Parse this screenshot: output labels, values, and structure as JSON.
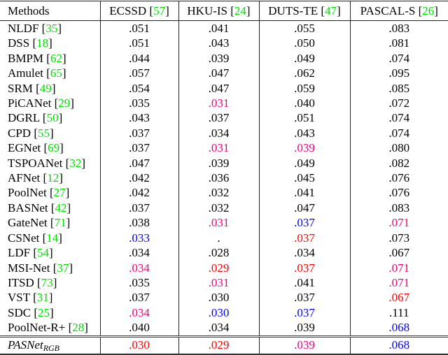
{
  "colors": {
    "red": "#ff0000",
    "pink": "#ee0080",
    "blue": "#0000ff",
    "citation": "#00e000"
  },
  "header": {
    "methods": "Methods",
    "datasets": [
      {
        "name": "ECSSD",
        "ref": "57"
      },
      {
        "name": "HKU-IS",
        "ref": "24"
      },
      {
        "name": "DUTS-TE",
        "ref": "47"
      },
      {
        "name": "PASCAL-S",
        "ref": "26"
      }
    ]
  },
  "rows": [
    {
      "method": "NLDF",
      "ref": "35",
      "values": [
        {
          "v": ".051"
        },
        {
          "v": ".041"
        },
        {
          "v": ".055"
        },
        {
          "v": ".083"
        }
      ]
    },
    {
      "method": "DSS",
      "ref": "18",
      "values": [
        {
          "v": ".051"
        },
        {
          "v": ".043"
        },
        {
          "v": ".050"
        },
        {
          "v": ".081"
        }
      ]
    },
    {
      "method": "BMPM",
      "ref": "62",
      "values": [
        {
          "v": ".044"
        },
        {
          "v": ".039"
        },
        {
          "v": ".049"
        },
        {
          "v": ".074"
        }
      ]
    },
    {
      "method": "Amulet",
      "ref": "65",
      "values": [
        {
          "v": ".057"
        },
        {
          "v": ".047"
        },
        {
          "v": ".062"
        },
        {
          "v": ".095"
        }
      ]
    },
    {
      "method": "SRM",
      "ref": "49",
      "values": [
        {
          "v": ".054"
        },
        {
          "v": ".047"
        },
        {
          "v": ".059"
        },
        {
          "v": ".085"
        }
      ]
    },
    {
      "method": "PiCANet",
      "ref": "29",
      "values": [
        {
          "v": ".035"
        },
        {
          "v": ".031",
          "c": "pink"
        },
        {
          "v": ".040"
        },
        {
          "v": ".072"
        }
      ]
    },
    {
      "method": "DGRL",
      "ref": "50",
      "values": [
        {
          "v": ".043"
        },
        {
          "v": ".037"
        },
        {
          "v": ".051"
        },
        {
          "v": ".074"
        }
      ]
    },
    {
      "method": "CPD",
      "ref": "55",
      "values": [
        {
          "v": ".037"
        },
        {
          "v": ".034"
        },
        {
          "v": ".043"
        },
        {
          "v": ".074"
        }
      ]
    },
    {
      "method": "EGNet",
      "ref": "69",
      "values": [
        {
          "v": ".037"
        },
        {
          "v": ".031",
          "c": "pink"
        },
        {
          "v": ".039",
          "c": "pink"
        },
        {
          "v": ".080"
        }
      ]
    },
    {
      "method": "TSPOANet",
      "ref": "32",
      "values": [
        {
          "v": ".047"
        },
        {
          "v": ".039"
        },
        {
          "v": ".049"
        },
        {
          "v": ".082"
        }
      ]
    },
    {
      "method": "AFNet",
      "ref": "12",
      "values": [
        {
          "v": ".042"
        },
        {
          "v": ".036"
        },
        {
          "v": ".045"
        },
        {
          "v": ".076"
        }
      ]
    },
    {
      "method": "PoolNet",
      "ref": "27",
      "values": [
        {
          "v": ".042"
        },
        {
          "v": ".032"
        },
        {
          "v": ".041"
        },
        {
          "v": ".076"
        }
      ]
    },
    {
      "method": "BASNet",
      "ref": "42",
      "values": [
        {
          "v": ".037"
        },
        {
          "v": ".032"
        },
        {
          "v": ".047"
        },
        {
          "v": ".083"
        }
      ]
    },
    {
      "method": "GateNet",
      "ref": "71",
      "values": [
        {
          "v": ".038"
        },
        {
          "v": ".031",
          "c": "pink"
        },
        {
          "v": ".037",
          "c": "blue"
        },
        {
          "v": ".071",
          "c": "pink"
        }
      ]
    },
    {
      "method": "CSNet",
      "ref": "14",
      "values": [
        {
          "v": ".033",
          "c": "blue"
        },
        {
          "v": "."
        },
        {
          "v": ".037",
          "c": "red"
        },
        {
          "v": ".073"
        }
      ]
    },
    {
      "method": "LDF",
      "ref": "54",
      "values": [
        {
          "v": ".034"
        },
        {
          "v": ".028"
        },
        {
          "v": ".034"
        },
        {
          "v": ".067"
        }
      ]
    },
    {
      "method": "MSI-Net",
      "ref": "37",
      "values": [
        {
          "v": ".034",
          "c": "pink"
        },
        {
          "v": ".029",
          "c": "red"
        },
        {
          "v": ".037",
          "c": "red"
        },
        {
          "v": ".071",
          "c": "pink"
        }
      ]
    },
    {
      "method": "ITSD",
      "ref": "73",
      "values": [
        {
          "v": ".035"
        },
        {
          "v": ".031",
          "c": "pink"
        },
        {
          "v": ".041"
        },
        {
          "v": ".071",
          "c": "pink"
        }
      ]
    },
    {
      "method": "VST",
      "ref": "31",
      "values": [
        {
          "v": ".037"
        },
        {
          "v": ".030"
        },
        {
          "v": ".037"
        },
        {
          "v": ".067",
          "c": "red"
        }
      ]
    },
    {
      "method": "SDC",
      "ref": "25",
      "values": [
        {
          "v": ".034",
          "c": "pink"
        },
        {
          "v": ".030",
          "c": "blue"
        },
        {
          "v": ".037",
          "c": "blue"
        },
        {
          "v": ".111"
        }
      ]
    },
    {
      "method": "PoolNet-R+",
      "ref": "28",
      "values": [
        {
          "v": ".040"
        },
        {
          "v": ".034"
        },
        {
          "v": ".039"
        },
        {
          "v": ".068",
          "c": "blue"
        }
      ]
    }
  ],
  "ours": {
    "method": "PASNet",
    "subscript": "RGB",
    "values": [
      {
        "v": ".030",
        "c": "red"
      },
      {
        "v": ".029",
        "c": "red"
      },
      {
        "v": ".039",
        "c": "pink"
      },
      {
        "v": ".068",
        "c": "blue"
      }
    ]
  }
}
